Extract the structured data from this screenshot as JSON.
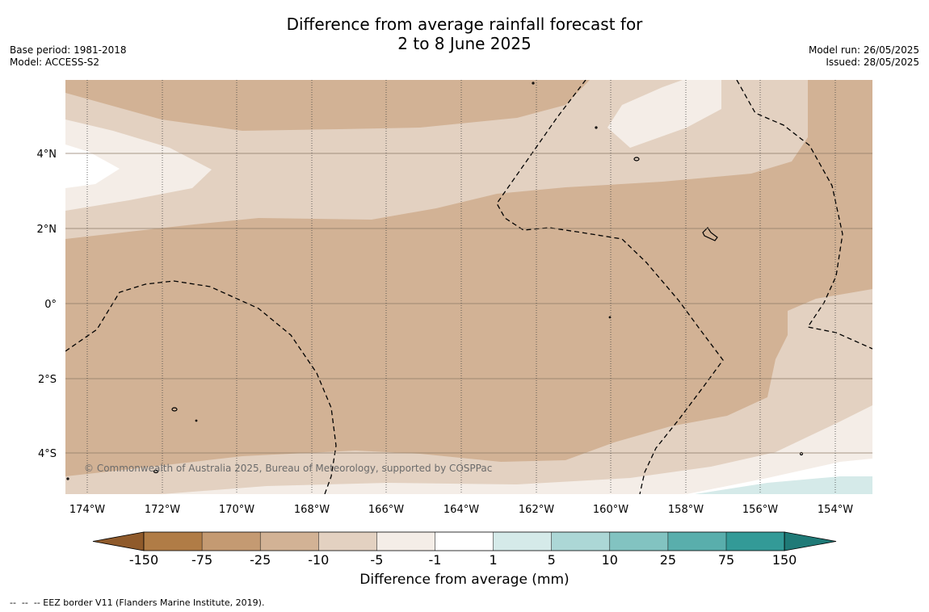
{
  "title": {
    "line1": "Difference from average rainfall forecast for",
    "line2": "2 to 8 June 2025"
  },
  "meta": {
    "base_period": "Base period: 1981-2018",
    "model": "Model: ACCESS-S2",
    "model_run": "Model run: 26/05/2025",
    "issued": "Issued: 28/05/2025"
  },
  "map": {
    "copyright": "© Commonwealth of Australia 2025, Bureau of Meteorology, supported by COSPPac",
    "lat_labels": [
      "4°N",
      "2°N",
      "0°",
      "2°S",
      "4°S"
    ],
    "lon_labels": [
      "174°W",
      "172°W",
      "170°W",
      "168°W",
      "166°W",
      "164°W",
      "162°W",
      "160°W",
      "158°W",
      "156°W",
      "154°W"
    ]
  },
  "legend": {
    "title": "Difference from average (mm)",
    "ticks": [
      "-150",
      "-75",
      "-25",
      "-10",
      "-5",
      "-1",
      "1",
      "5",
      "10",
      "25",
      "75",
      "150"
    ],
    "colors": {
      "below_150": "#8f5a2b",
      "m150_m75": "#b07c46",
      "m75_m25": "#c49a72",
      "m25_m10": "#d2b295",
      "m10_m5": "#e3d1c1",
      "m5_m1": "#f4ede7",
      "m1_1": "#ffffff",
      "p1_5": "#d5eae9",
      "p5_10": "#acd7d6",
      "p10_25": "#82c3c1",
      "p25_75": "#59aeac",
      "p75_150": "#339a97",
      "above_150": "#1f7a77"
    }
  },
  "footnote": "--  --  -- EEZ border V11 (Flanders Marine Institute, 2019)."
}
